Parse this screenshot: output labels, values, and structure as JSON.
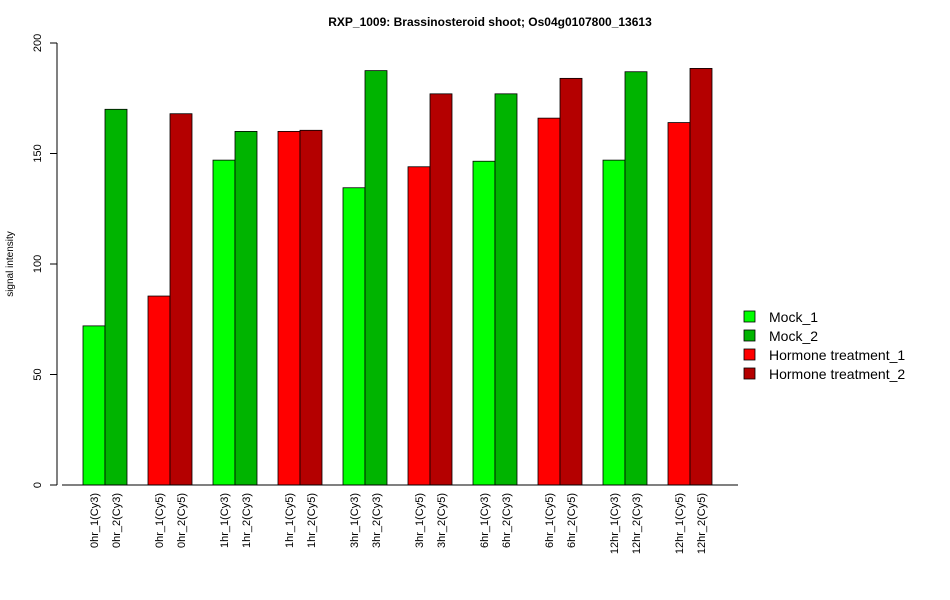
{
  "chart_data": {
    "type": "bar",
    "title": "RXP_1009: Brassinosteroid shoot; Os04g0107800_13613",
    "xlabel": "",
    "ylabel": "signal intensity",
    "ylim": [
      0,
      200
    ],
    "yticks": [
      0,
      50,
      100,
      150,
      200
    ],
    "grid": false,
    "legend_position": "right",
    "categories": [
      "0hr_1(Cy3)",
      "0hr_2(Cy3)",
      "0hr_1(Cy5)",
      "0hr_2(Cy5)",
      "1hr_1(Cy3)",
      "1hr_2(Cy3)",
      "1hr_1(Cy5)",
      "1hr_2(Cy5)",
      "3hr_1(Cy3)",
      "3hr_2(Cy3)",
      "3hr_1(Cy5)",
      "3hr_2(Cy5)",
      "6hr_1(Cy3)",
      "6hr_2(Cy3)",
      "6hr_1(Cy5)",
      "6hr_2(Cy5)",
      "12hr_1(Cy3)",
      "12hr_2(Cy3)",
      "12hr_1(Cy5)",
      "12hr_2(Cy5)"
    ],
    "values": [
      72,
      170,
      85.5,
      168,
      147,
      160,
      160,
      160.5,
      134.5,
      187.5,
      144,
      177,
      146.5,
      177,
      166,
      184,
      147,
      187,
      164,
      188.5
    ],
    "bar_series": [
      0,
      1,
      2,
      3,
      0,
      1,
      2,
      3,
      0,
      1,
      2,
      3,
      0,
      1,
      2,
      3,
      0,
      1,
      2,
      3
    ],
    "series": [
      {
        "name": "Mock_1",
        "color": "#00FF00"
      },
      {
        "name": "Mock_2",
        "color": "#00B400"
      },
      {
        "name": "Hormone treatment_1",
        "color": "#FF0000"
      },
      {
        "name": "Hormone treatment_2",
        "color": "#B40000"
      }
    ]
  }
}
